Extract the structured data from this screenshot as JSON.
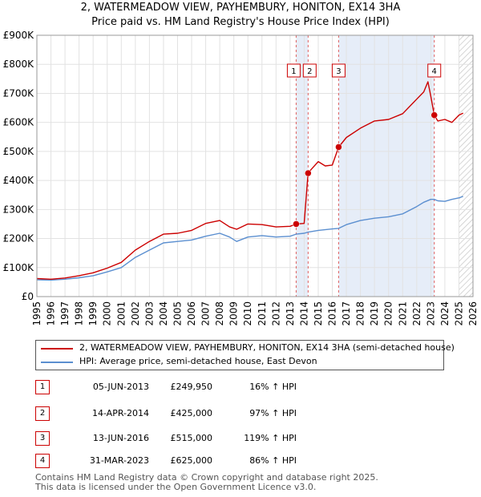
{
  "title_line1": "2, WATERMEADOW VIEW, PAYHEMBURY, HONITON, EX14 3HA",
  "title_line2": "Price paid vs. HM Land Registry's House Price Index (HPI)",
  "chart_data": {
    "type": "line",
    "ylim": [
      0,
      900000
    ],
    "xlim": [
      1995,
      2026
    ],
    "yticks": [
      0,
      100000,
      200000,
      300000,
      400000,
      500000,
      600000,
      700000,
      800000,
      900000
    ],
    "ytick_labels": [
      "£0",
      "£100K",
      "£200K",
      "£300K",
      "£400K",
      "£500K",
      "£600K",
      "£700K",
      "£800K",
      "£900K"
    ],
    "xticks": [
      1995,
      1996,
      1997,
      1998,
      1999,
      2000,
      2001,
      2002,
      2003,
      2004,
      2005,
      2006,
      2007,
      2008,
      2009,
      2010,
      2011,
      2012,
      2013,
      2014,
      2015,
      2016,
      2017,
      2018,
      2019,
      2020,
      2021,
      2022,
      2023,
      2024,
      2025,
      2026
    ],
    "shaded_ranges": [
      [
        2013.43,
        2014.28
      ],
      [
        2016.45,
        2023.25
      ]
    ],
    "hatched_from": 2025.0,
    "series": [
      {
        "name": "2, WATERMEADOW VIEW, PAYHEMBURY, HONITON, EX14 3HA (semi-detached house)",
        "color": "#cc0000",
        "x": [
          1995.0,
          1996.0,
          1997.0,
          1998.0,
          1999.0,
          2000.0,
          2001.0,
          2002.0,
          2003.0,
          2004.0,
          2005.0,
          2006.0,
          2007.0,
          2008.0,
          2008.7,
          2009.2,
          2010.0,
          2011.0,
          2012.0,
          2013.0,
          2013.43,
          2014.0,
          2014.28,
          2014.5,
          2015.0,
          2015.5,
          2016.0,
          2016.45,
          2017.0,
          2018.0,
          2019.0,
          2020.0,
          2021.0,
          2022.0,
          2022.5,
          2022.8,
          2023.0,
          2023.25,
          2023.5,
          2024.0,
          2024.5,
          2025.0,
          2025.3
        ],
        "values": [
          62000,
          60000,
          64000,
          72000,
          82000,
          98000,
          118000,
          160000,
          190000,
          215000,
          218000,
          228000,
          252000,
          262000,
          240000,
          232000,
          250000,
          248000,
          240000,
          242000,
          249950,
          252000,
          425000,
          438000,
          465000,
          450000,
          453000,
          515000,
          548000,
          580000,
          605000,
          610000,
          630000,
          680000,
          705000,
          740000,
          690000,
          625000,
          605000,
          610000,
          600000,
          625000,
          632000
        ]
      },
      {
        "name": "HPI: Average price, semi-detached house, East Devon",
        "color": "#5b8fd0",
        "x": [
          1995.0,
          1996.0,
          1997.0,
          1998.0,
          1999.0,
          2000.0,
          2001.0,
          2002.0,
          2003.0,
          2004.0,
          2005.0,
          2006.0,
          2007.0,
          2008.0,
          2008.7,
          2009.2,
          2010.0,
          2011.0,
          2012.0,
          2013.0,
          2013.43,
          2014.0,
          2014.28,
          2015.0,
          2016.0,
          2016.45,
          2017.0,
          2018.0,
          2019.0,
          2020.0,
          2021.0,
          2022.0,
          2022.5,
          2023.0,
          2023.25,
          2023.5,
          2024.0,
          2024.5,
          2025.0,
          2025.3
        ],
        "values": [
          58000,
          57000,
          60000,
          65000,
          72000,
          85000,
          100000,
          135000,
          160000,
          185000,
          190000,
          195000,
          208000,
          218000,
          205000,
          190000,
          205000,
          210000,
          205000,
          208000,
          215000,
          218000,
          222000,
          228000,
          233000,
          235000,
          248000,
          262000,
          270000,
          275000,
          285000,
          310000,
          325000,
          335000,
          335000,
          330000,
          328000,
          335000,
          340000,
          345000
        ]
      }
    ],
    "sales": [
      {
        "label": "1",
        "x": 2013.43,
        "value": 249950
      },
      {
        "label": "2",
        "x": 2014.28,
        "value": 425000
      },
      {
        "label": "3",
        "x": 2016.45,
        "value": 515000
      },
      {
        "label": "4",
        "x": 2023.25,
        "value": 625000
      }
    ]
  },
  "legend": [
    {
      "label": "2, WATERMEADOW VIEW, PAYHEMBURY, HONITON, EX14 3HA (semi-detached house)",
      "color": "#cc0000"
    },
    {
      "label": "HPI: Average price, semi-detached house, East Devon",
      "color": "#5b8fd0"
    }
  ],
  "table": [
    {
      "num": "1",
      "date": "05-JUN-2013",
      "price": "£249,950",
      "hpi": "16% ↑ HPI"
    },
    {
      "num": "2",
      "date": "14-APR-2014",
      "price": "£425,000",
      "hpi": "97% ↑ HPI"
    },
    {
      "num": "3",
      "date": "13-JUN-2016",
      "price": "£515,000",
      "hpi": "119% ↑ HPI"
    },
    {
      "num": "4",
      "date": "31-MAR-2023",
      "price": "£625,000",
      "hpi": "86% ↑ HPI"
    }
  ],
  "footer_line1": "Contains HM Land Registry data © Crown copyright and database right 2025.",
  "footer_line2": "This data is licensed under the Open Government Licence v3.0."
}
